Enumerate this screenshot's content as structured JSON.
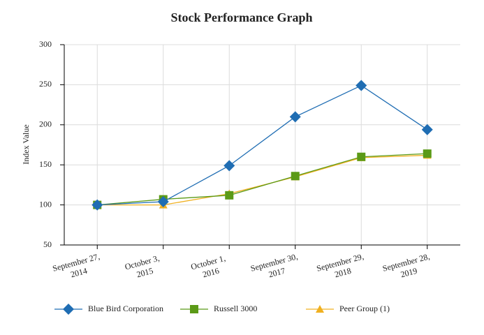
{
  "chart_data": {
    "type": "line",
    "title": "Stock Performance Graph",
    "y_label": "Index Value",
    "categories": [
      "September 27, 2014",
      "October 3, 2015",
      "October 1, 2016",
      "September 30, 2017",
      "September 29, 2018",
      "September 28, 2019"
    ],
    "series": [
      {
        "name": "Blue Bird Corporation",
        "color": "#1f6db3",
        "marker": "diamond",
        "values": [
          100,
          104,
          149,
          210,
          249,
          194
        ]
      },
      {
        "name": "Russell 3000",
        "color": "#5b9a17",
        "marker": "square",
        "values": [
          100,
          107,
          112,
          136,
          160,
          164
        ]
      },
      {
        "name": "Peer Group (1)",
        "color": "#f0b020",
        "marker": "triangle",
        "values": [
          100,
          100,
          114,
          135,
          159,
          162
        ]
      }
    ],
    "ylim": [
      50,
      300
    ],
    "yticks": [
      50,
      100,
      150,
      200,
      250,
      300
    ],
    "grid": true
  }
}
